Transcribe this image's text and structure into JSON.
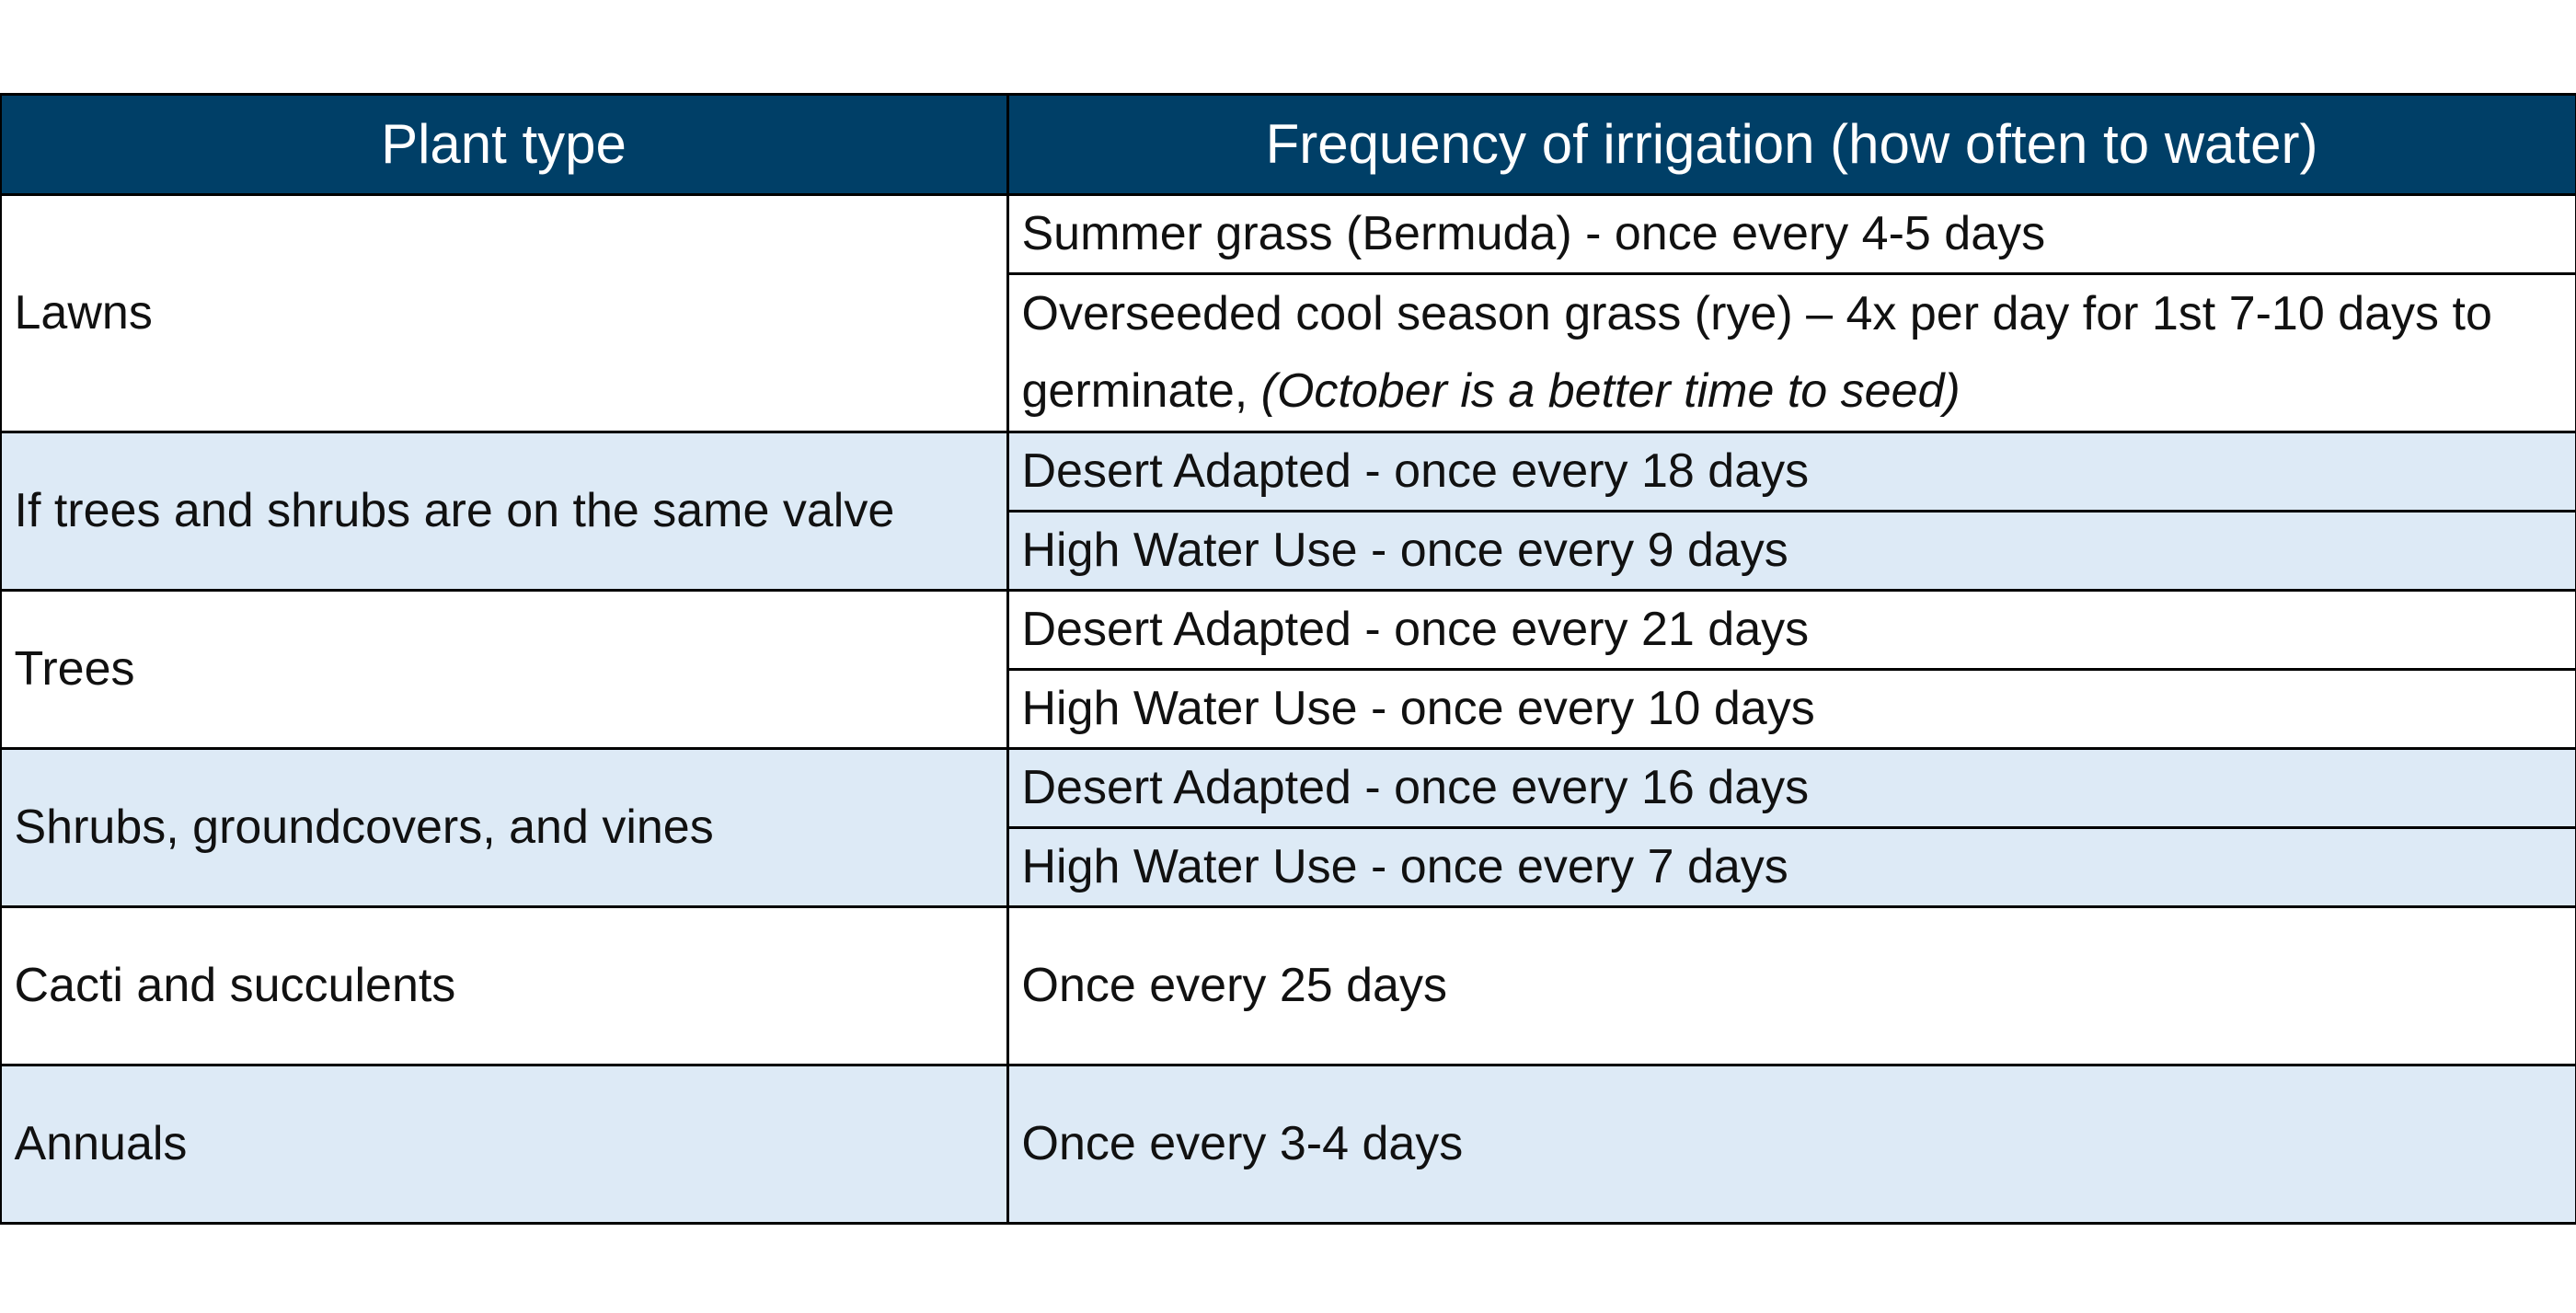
{
  "header": [
    "Plant type",
    "Frequency of irrigation (how often to water)"
  ],
  "rows": [
    {
      "plant": "Lawns",
      "entries": [
        "Summer grass (Bermuda) - once every 4-5 days",
        {
          "text": "Overseeded cool season grass (rye) – 4x per day for 1st 7-10 days to germinate, ",
          "note": "(October is a better time to seed)"
        }
      ]
    },
    {
      "plant": "If trees and shrubs are on the same valve",
      "entries": [
        "Desert Adapted - once every 18 days",
        "High Water Use - once every 9 days"
      ]
    },
    {
      "plant": "Trees",
      "entries": [
        "Desert Adapted - once every 21 days",
        "High Water Use - once every 10 days"
      ]
    },
    {
      "plant": "Shrubs, groundcovers, and vines",
      "entries": [
        "Desert Adapted - once every 16 days",
        "High Water Use - once every 7 days"
      ]
    },
    {
      "plant": "Cacti and succulents",
      "entries": [
        "Once every 25 days"
      ]
    },
    {
      "plant": "Annuals",
      "entries": [
        "Once every 3-4 days"
      ]
    }
  ]
}
